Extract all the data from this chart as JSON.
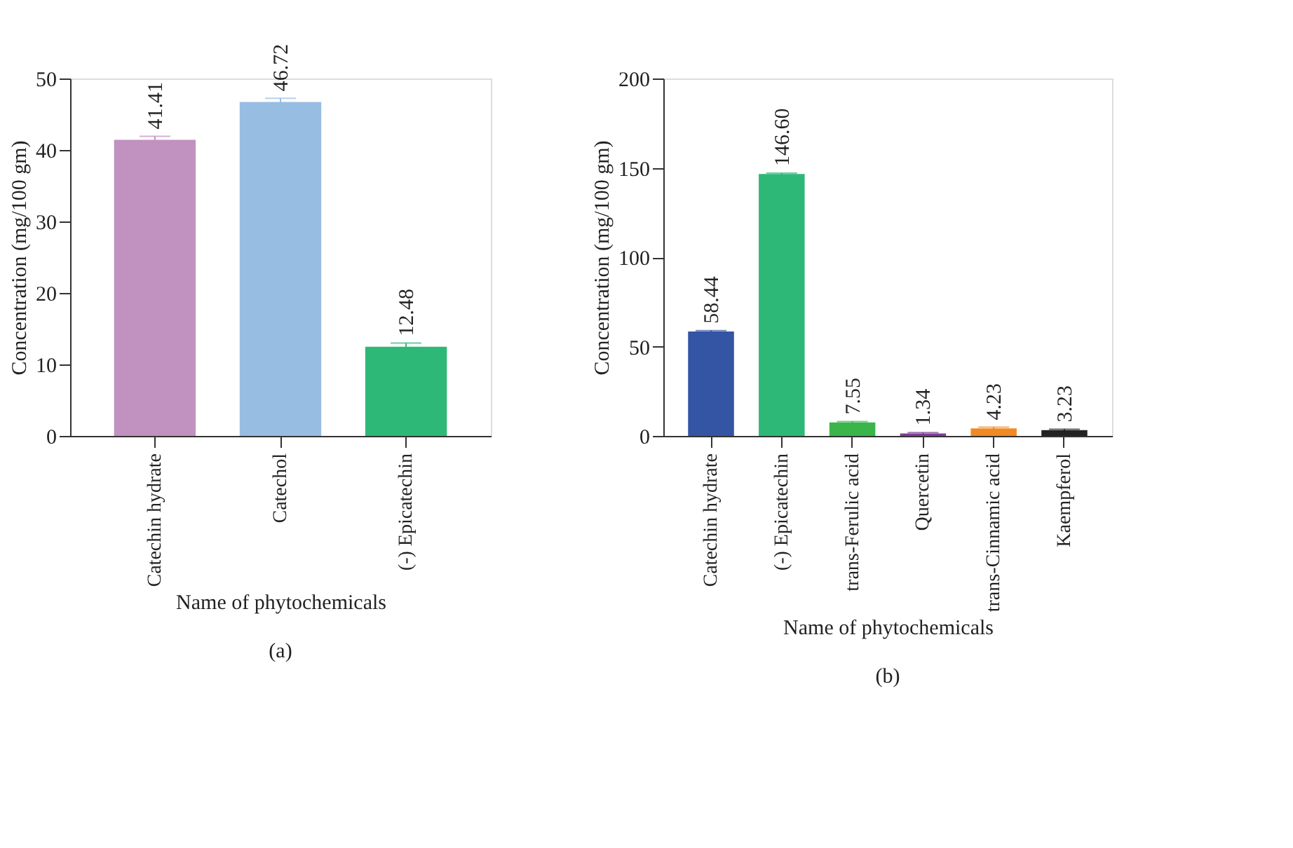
{
  "chart_data": [
    {
      "type": "bar",
      "xlabel": "Name of phytochemicals",
      "ylabel": "Concentration (mg/100 gm)",
      "categories": [
        "Catechin hydrate",
        "Catechol",
        "(-) Epicatechin"
      ],
      "values": [
        41.41,
        46.72,
        12.48
      ],
      "colors": [
        "#c191c0",
        "#98bde3",
        "#2eb877"
      ],
      "errors": [
        0.5,
        0.5,
        0.5
      ],
      "ylim": [
        0,
        50
      ],
      "yticks": [
        0,
        10,
        20,
        30,
        40,
        50
      ],
      "data_labels": true,
      "grid": false,
      "annotations": [
        "(a)"
      ]
    },
    {
      "type": "bar",
      "xlabel": "Name of phytochemicals",
      "ylabel": "Concentration (mg/100 gm)",
      "categories": [
        "Catechin hydrate",
        "(-) Epicatechin",
        "trans-Ferulic acid",
        "Quercetin",
        "trans-Cinnamic acid",
        "Kaempferol"
      ],
      "values": [
        58.44,
        146.6,
        7.55,
        1.34,
        4.23,
        3.23
      ],
      "value_labels": [
        "58.44",
        "146.60",
        "7.55",
        "1.34",
        "4.23",
        "3.23"
      ],
      "colors": [
        "#3454a4",
        "#2eb877",
        "#39b54a",
        "#7b3f98",
        "#f08a24",
        "#222222"
      ],
      "errors": [
        0.5,
        0.5,
        0.5,
        0.5,
        0.7,
        0.5
      ],
      "ylim": [
        0,
        200
      ],
      "yticks": [
        0,
        50,
        100,
        150,
        200
      ],
      "grid": false,
      "annotations": [
        "(b)"
      ]
    }
  ]
}
